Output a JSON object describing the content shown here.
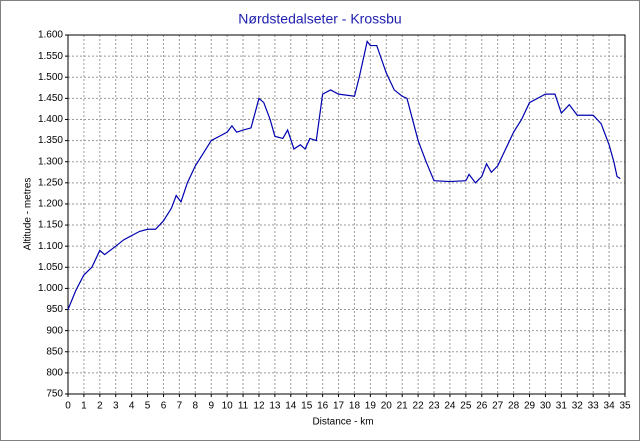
{
  "chart_data": {
    "type": "line",
    "title": "Nørdstedalseter - Krossbu",
    "x_label": "Distance - km",
    "y_label": "Altitude - metres",
    "color": "#0000b0",
    "grid": true,
    "x": [
      0,
      0.5,
      1,
      1.5,
      2,
      2.3,
      3,
      3.5,
      4,
      4.5,
      5,
      5.5,
      6,
      6.5,
      6.8,
      7.1,
      7.5,
      8,
      8.5,
      9,
      9.5,
      10,
      10.3,
      10.6,
      11,
      11.5,
      12,
      12.3,
      12.7,
      13,
      13.5,
      13.8,
      14.2,
      14.6,
      14.9,
      15.2,
      15.6,
      16,
      16.5,
      17,
      18,
      18.3,
      18.8,
      19,
      19.4,
      20,
      20.5,
      21,
      21.3,
      22,
      22.5,
      23,
      24,
      25,
      25.2,
      25.6,
      26,
      26.3,
      26.6,
      27,
      27.5,
      28,
      28.5,
      29,
      29.5,
      30,
      30.6,
      31,
      31.5,
      32,
      33,
      33.5,
      34,
      34.3,
      34.5,
      34.7
    ],
    "values": [
      950,
      996,
      1032,
      1050,
      1090,
      1080,
      1100,
      1115,
      1125,
      1135,
      1140,
      1140,
      1160,
      1190,
      1220,
      1205,
      1250,
      1290,
      1320,
      1350,
      1360,
      1370,
      1385,
      1370,
      1375,
      1380,
      1450,
      1440,
      1400,
      1360,
      1355,
      1375,
      1330,
      1340,
      1330,
      1355,
      1350,
      1460,
      1470,
      1460,
      1455,
      1500,
      1585,
      1575,
      1575,
      1510,
      1470,
      1455,
      1450,
      1350,
      1300,
      1255,
      1253,
      1255,
      1270,
      1250,
      1265,
      1295,
      1275,
      1290,
      1330,
      1370,
      1400,
      1440,
      1450,
      1460,
      1460,
      1415,
      1435,
      1410,
      1410,
      1390,
      1340,
      1300,
      1265,
      1260
    ],
    "xlim": [
      0,
      35
    ],
    "ylim": [
      750,
      1600
    ],
    "xticks": [
      0,
      1,
      2,
      3,
      4,
      5,
      6,
      7,
      8,
      9,
      10,
      11,
      12,
      13,
      14,
      15,
      16,
      17,
      18,
      19,
      20,
      21,
      22,
      23,
      24,
      25,
      26,
      27,
      28,
      29,
      30,
      31,
      32,
      33,
      34,
      35
    ],
    "yticks": [
      750,
      800,
      850,
      900,
      950,
      {
        "value": 1000,
        "label": "1.000"
      },
      {
        "value": 1050,
        "label": "1.050"
      },
      {
        "value": 1100,
        "label": "1.100"
      },
      {
        "value": 1150,
        "label": "1.150"
      },
      {
        "value": 1200,
        "label": "1.200"
      },
      {
        "value": 1250,
        "label": "1.250"
      },
      {
        "value": 1300,
        "label": "1.300"
      },
      {
        "value": 1350,
        "label": "1.350"
      },
      {
        "value": 1400,
        "label": "1.400"
      },
      {
        "value": 1450,
        "label": "1.450"
      },
      {
        "value": 1500,
        "label": "1.500"
      },
      {
        "value": 1550,
        "label": "1.550"
      },
      {
        "value": 1600,
        "label": "1.600"
      }
    ]
  }
}
